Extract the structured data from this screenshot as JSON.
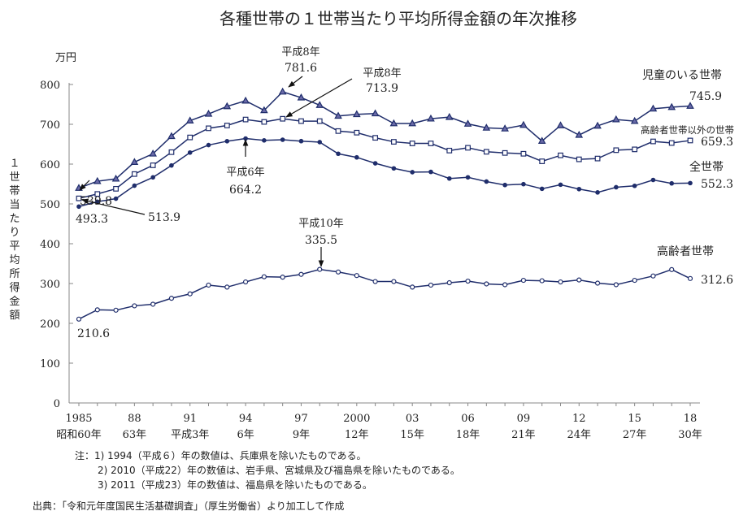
{
  "chart_data": {
    "type": "line",
    "title": "各種世帯の１世帯当たり平均所得金額の年次推移",
    "ylabel": "１世帯当たり平均所得金額",
    "yunit": "万円",
    "ylim": [
      0,
      800
    ],
    "yticks": [
      0,
      100,
      200,
      300,
      400,
      500,
      600,
      700,
      800
    ],
    "grid": false,
    "color": "#1f2d6b",
    "x": [
      1985,
      1986,
      1987,
      1988,
      1989,
      1990,
      1991,
      1992,
      1993,
      1994,
      1995,
      1996,
      1997,
      1998,
      1999,
      2000,
      2001,
      2002,
      2003,
      2004,
      2005,
      2006,
      2007,
      2008,
      2009,
      2010,
      2011,
      2012,
      2013,
      2014,
      2015,
      2016,
      2017,
      2018
    ],
    "xticks": [
      {
        "year": 1985,
        "label": "1985",
        "era": "昭和60年"
      },
      {
        "year": 1988,
        "label": "88",
        "era": "63年"
      },
      {
        "year": 1991,
        "label": "91",
        "era": "平成3年"
      },
      {
        "year": 1994,
        "label": "94",
        "era": "6年"
      },
      {
        "year": 1997,
        "label": "97",
        "era": "9年"
      },
      {
        "year": 2000,
        "label": "2000",
        "era": "12年"
      },
      {
        "year": 2003,
        "label": "03",
        "era": "15年"
      },
      {
        "year": 2006,
        "label": "06",
        "era": "18年"
      },
      {
        "year": 2009,
        "label": "09",
        "era": "21年"
      },
      {
        "year": 2012,
        "label": "12",
        "era": "24年"
      },
      {
        "year": 2015,
        "label": "15",
        "era": "27年"
      },
      {
        "year": 2018,
        "label": "18",
        "era": "30年"
      }
    ],
    "series": [
      {
        "name": "児童のいる世帯",
        "marker": "triangle",
        "end_value": "745.9",
        "values": [
          539.8,
          557,
          563,
          605,
          626,
          670,
          709,
          726,
          745,
          759,
          735,
          781.6,
          767,
          748,
          721,
          725,
          727,
          702,
          702,
          714,
          718,
          701,
          691,
          689,
          698,
          658,
          697,
          673,
          696,
          712,
          708,
          739,
          743,
          745.9
        ]
      },
      {
        "name": "高齢者世帯以外の世帯",
        "marker": "square-open",
        "end_value": "659.3",
        "values": [
          513.9,
          525,
          538,
          575,
          597,
          630,
          667,
          690,
          697,
          712,
          706,
          713.9,
          708,
          708,
          683,
          679,
          666,
          656,
          652,
          652,
          634,
          641,
          631,
          628,
          626,
          607,
          622,
          612,
          614,
          635,
          637,
          657,
          653,
          659.3
        ]
      },
      {
        "name": "全世帯",
        "marker": "circle-filled",
        "end_value": "552.3",
        "values": [
          493.3,
          505.6,
          513.2,
          545.8,
          566.7,
          596.6,
          629.0,
          647.8,
          657.5,
          664.2,
          659.6,
          661.2,
          657.7,
          655.2,
          626.0,
          616.9,
          602.0,
          589.3,
          579.7,
          580.4,
          563.8,
          566.8,
          556.2,
          547.5,
          549.6,
          538.0,
          548.2,
          537.2,
          528.9,
          541.9,
          545.4,
          560.2,
          551.6,
          552.3
        ]
      },
      {
        "name": "高齢者世帯",
        "marker": "circle-open",
        "end_value": "312.6",
        "values": [
          210.6,
          234,
          233,
          244,
          248,
          263,
          274,
          296,
          291,
          304,
          317,
          316,
          323,
          335.5,
          329,
          320,
          305,
          305,
          291,
          296,
          302,
          306,
          299,
          297,
          308,
          307,
          304,
          309,
          301,
          297,
          308,
          319,
          335,
          312.6
        ]
      }
    ],
    "annotations": {
      "a1": {
        "era": "平成8年",
        "value": "781.6"
      },
      "a2": {
        "era": "平成8年",
        "value": "713.9"
      },
      "a3": {
        "value": "539.8"
      },
      "a4": {
        "value": "493.3"
      },
      "a5": {
        "value": "513.9"
      },
      "a6": {
        "era": "平成6年",
        "value": "664.2"
      },
      "a7": {
        "era": "平成10年",
        "value": "335.5"
      },
      "a8": {
        "value": "210.6"
      }
    }
  },
  "notes": [
    "注：1) 1994（平成６）年の数値は、兵庫県を除いたものである。",
    "2) 2010（平成22）年の数値は、岩手県、宮城県及び福島県を除いたものである。",
    "3) 2011（平成23）年の数値は、福島県を除いたものである。"
  ],
  "source": "出典：「令和元年度国民生活基礎調査」（厚生労働省）より加工して作成"
}
